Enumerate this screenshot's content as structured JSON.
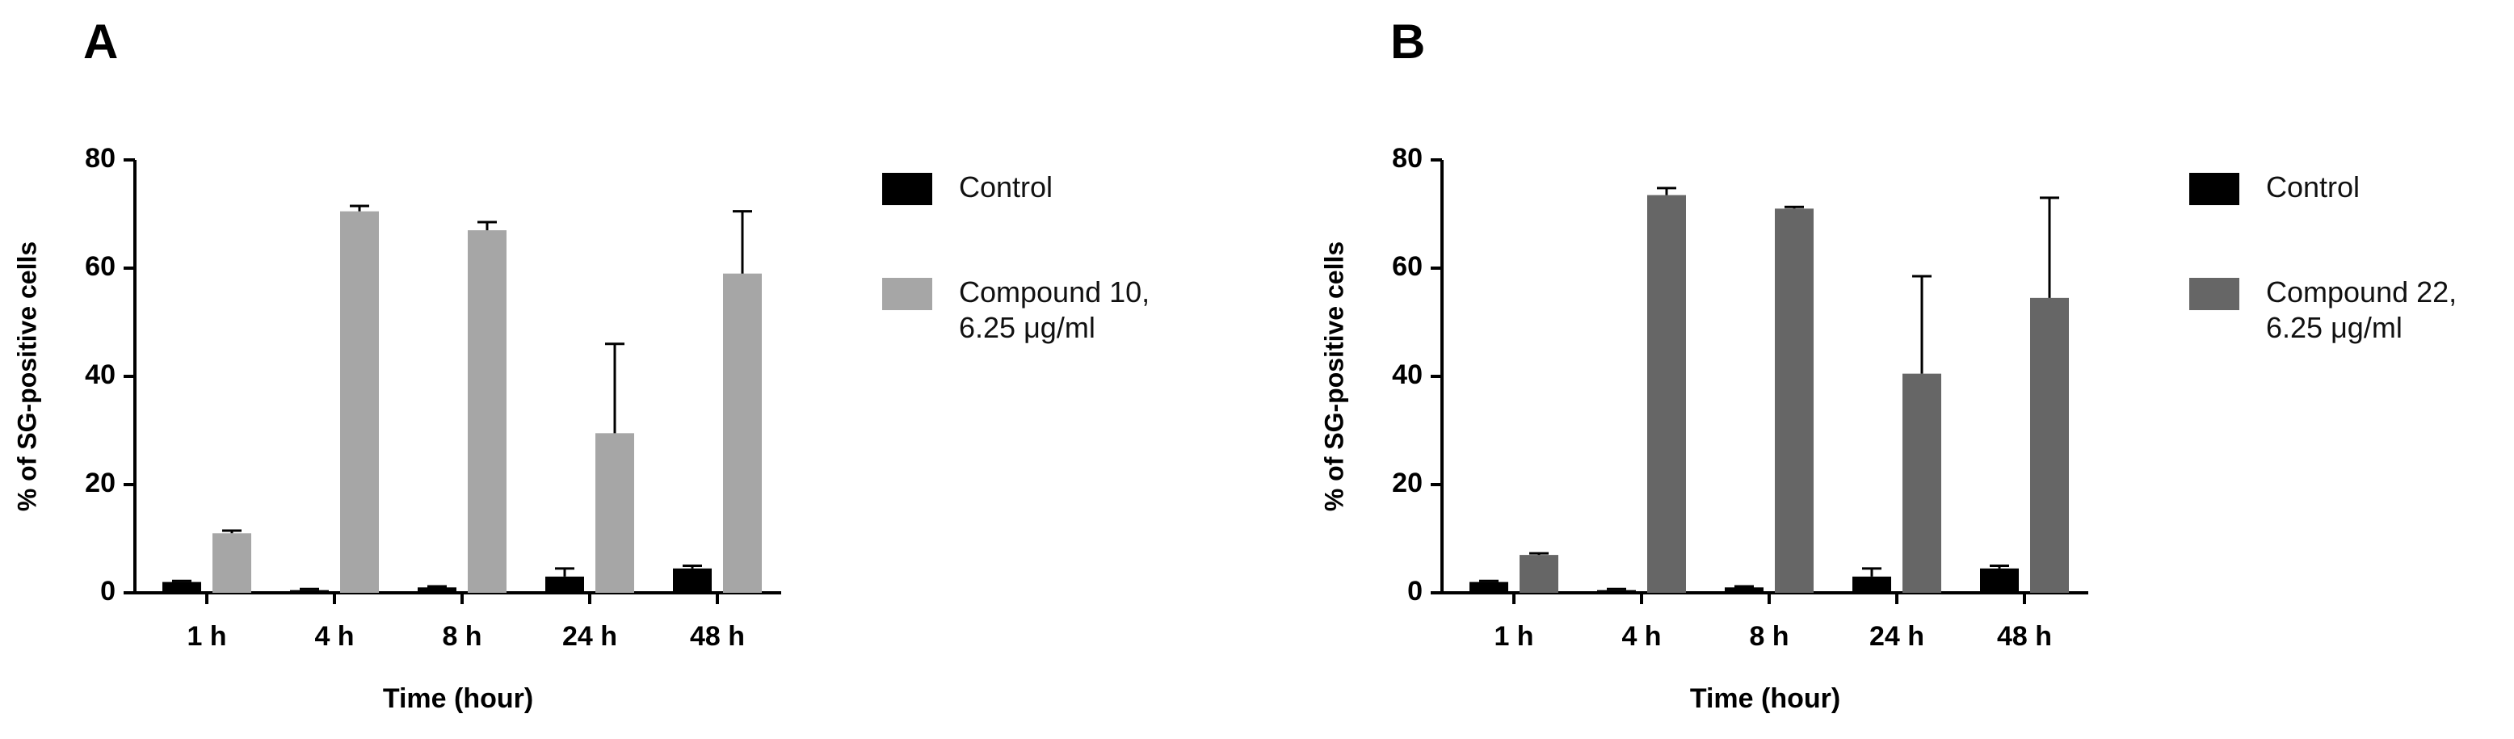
{
  "chart_data": [
    {
      "type": "bar",
      "panel": "A",
      "x_label": "Time (hour)",
      "y_label": "% of SG-positive cells",
      "categories": [
        "1 h",
        "4 h",
        "8 h",
        "24 h",
        "48 h"
      ],
      "series": [
        {
          "name": "Control",
          "color": "#000000",
          "values": [
            2,
            0.5,
            1,
            3,
            4.5
          ],
          "errors": [
            0.2,
            0.2,
            0.2,
            1.5,
            0.5
          ]
        },
        {
          "name": "Compound 10, 6.25 μg/ml",
          "color": "#a6a6a6",
          "values": [
            11,
            70.5,
            67,
            29.5,
            59
          ],
          "errors": [
            0.5,
            1,
            1.5,
            16.5,
            11.5
          ]
        }
      ],
      "ylim": [
        0,
        80
      ],
      "yticks": [
        0,
        20,
        40,
        60,
        80
      ]
    },
    {
      "type": "bar",
      "panel": "B",
      "x_label": "Time (hour)",
      "y_label": "% of SG-positive cells",
      "categories": [
        "1 h",
        "4 h",
        "8 h",
        "24 h",
        "48 h"
      ],
      "series": [
        {
          "name": "Control",
          "color": "#000000",
          "values": [
            2,
            0.5,
            1,
            3,
            4.5
          ],
          "errors": [
            0.2,
            0.2,
            0.2,
            1.5,
            0.5
          ]
        },
        {
          "name": "Compound 22, 6.25 μg/ml",
          "color": "#666666",
          "values": [
            7,
            73.5,
            71,
            40.5,
            54.5
          ],
          "errors": [
            0.3,
            1.3,
            0.3,
            18,
            18.5
          ]
        }
      ],
      "ylim": [
        0,
        80
      ],
      "yticks": [
        0,
        20,
        40,
        60,
        80
      ]
    }
  ]
}
